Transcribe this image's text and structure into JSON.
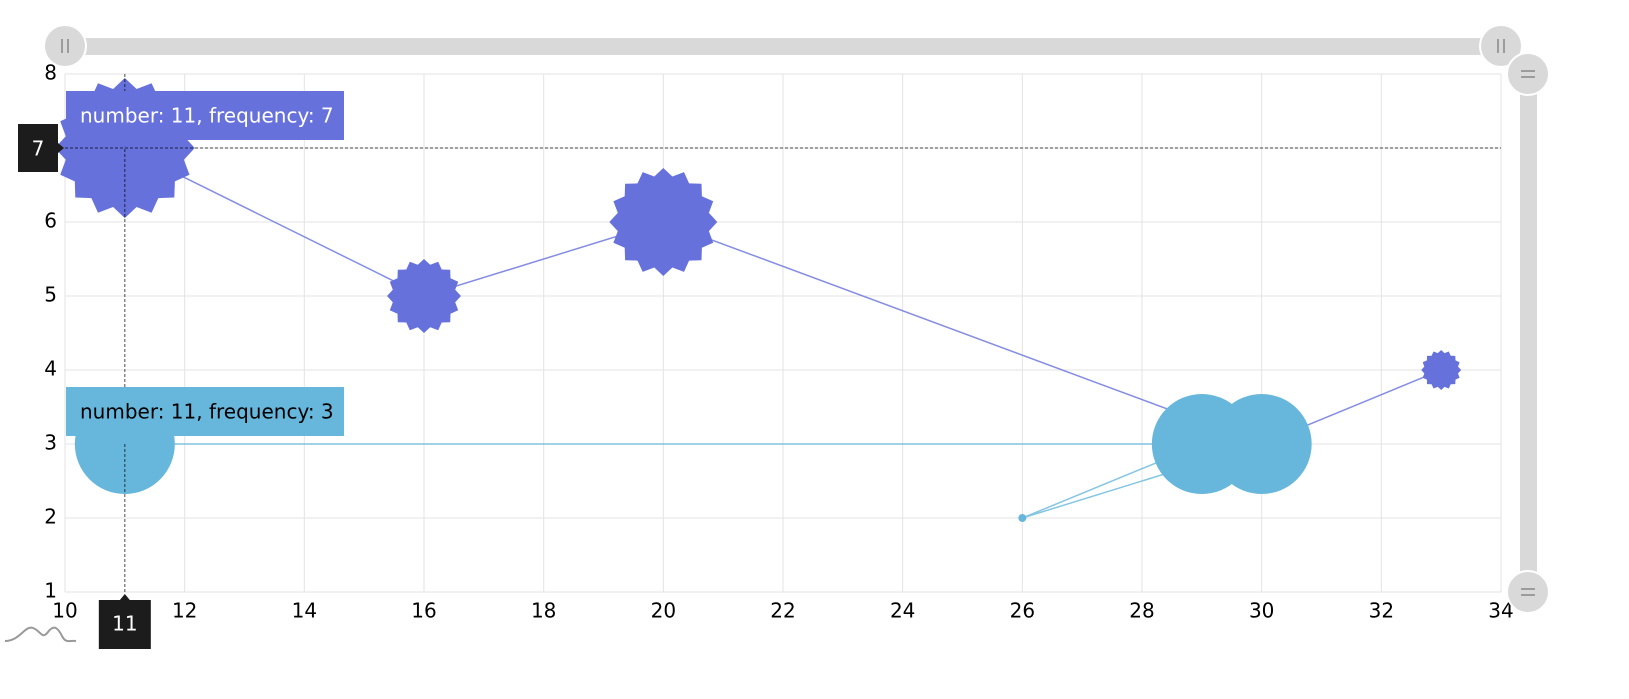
{
  "chart_data": {
    "type": "bubble",
    "xlim": [
      10,
      34
    ],
    "xticks": [
      10,
      12,
      14,
      16,
      18,
      20,
      22,
      24,
      26,
      28,
      30,
      32,
      34
    ],
    "ylim": [
      1,
      8
    ],
    "yticks": [
      1,
      2,
      3,
      4,
      5,
      6,
      7,
      8
    ],
    "grid": true,
    "series": [
      {
        "color": "#6771dc",
        "shape": "star",
        "x": [
          11,
          16,
          20,
          30,
          33
        ],
        "y": [
          7,
          5,
          6,
          3,
          4
        ],
        "sizes": [
          7,
          3.7,
          5.4,
          0.4,
          2
        ]
      },
      {
        "color": "#67b7dc",
        "shape": "circle",
        "x": [
          11,
          29,
          26,
          30
        ],
        "y": [
          3,
          3,
          2,
          3
        ],
        "sizes": [
          5,
          5,
          0.4,
          5
        ]
      }
    ],
    "tooltips": [
      {
        "series": 0,
        "point": 0,
        "text": "number: 11, frequency: 7"
      },
      {
        "series": 1,
        "point": 0,
        "text": "number: 11, frequency: 3"
      }
    ],
    "cursor": {
      "x": 11,
      "y": 7
    }
  }
}
